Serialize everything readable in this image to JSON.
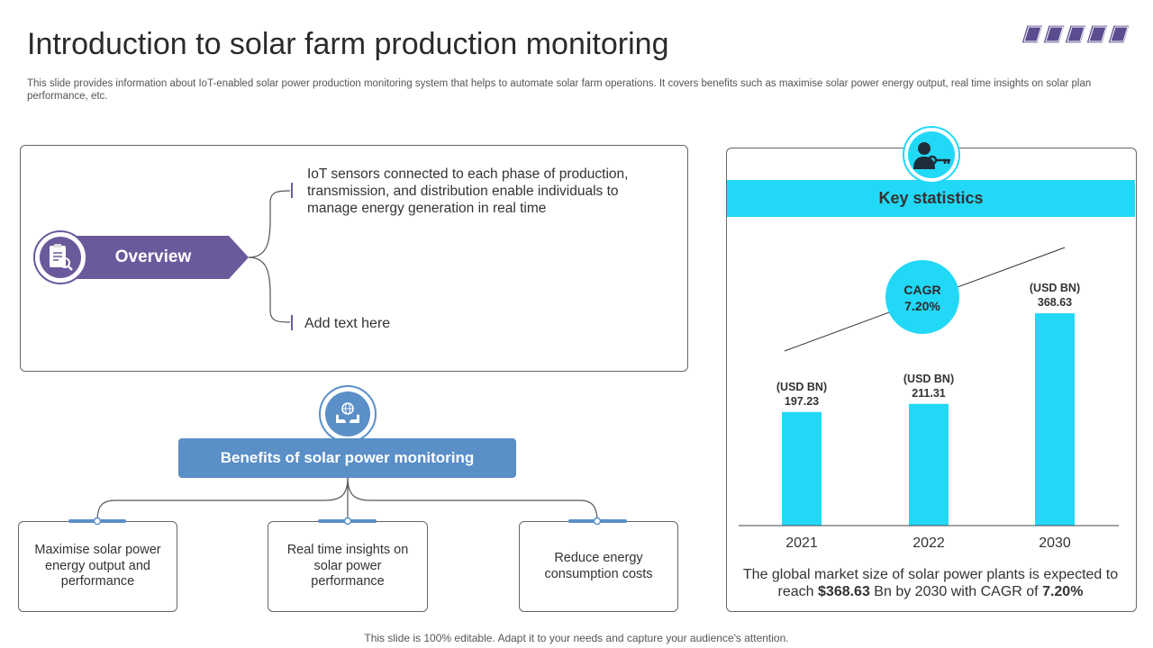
{
  "header": {
    "title": "Introduction to solar farm production monitoring",
    "subtitle": "This slide provides information about IoT-enabled solar power production monitoring system that helps to automate solar farm operations. It covers benefits such as maximise solar power energy output, real time insights on solar plan performance, etc."
  },
  "overview": {
    "label": "Overview",
    "icon": "report-magnifier-icon",
    "color": "#6a5a9c",
    "points": [
      "IoT sensors connected to each phase of production, transmission, and distribution enable individuals to manage energy generation in real time",
      "Add text here"
    ]
  },
  "benefits": {
    "title": "Benefits of solar power monitoring",
    "icon": "hands-globe-icon",
    "color": "#5a8fc7",
    "items": [
      "Maximise solar power energy output and performance",
      "Real time insights on solar power performance",
      "Reduce energy consumption costs"
    ]
  },
  "stats": {
    "title": "Key statistics",
    "icon": "person-key-icon",
    "accent": "#22d8f7",
    "cagr_label": "CAGR",
    "cagr_value": "7.20%",
    "caption_prefix": "The global market size of solar power plants is expected to reach ",
    "caption_bold_1": "$368.63",
    "caption_middle": " Bn by 2030 with CAGR of ",
    "caption_bold_2": "7.20%"
  },
  "chart_data": {
    "type": "bar",
    "categories": [
      "2021",
      "2022",
      "2030"
    ],
    "values": [
      197.23,
      211.31,
      368.63
    ],
    "data_label_unit": "(USD BN)",
    "data_labels": [
      "197.23",
      "211.31",
      "368.63"
    ],
    "title": "",
    "xlabel": "",
    "ylabel": "",
    "ylim": [
      0,
      400
    ],
    "color": "#22d8f7",
    "grid": false,
    "legend": "none"
  },
  "footer": "This slide is 100% editable. Adapt it to your needs and capture your audience's attention."
}
